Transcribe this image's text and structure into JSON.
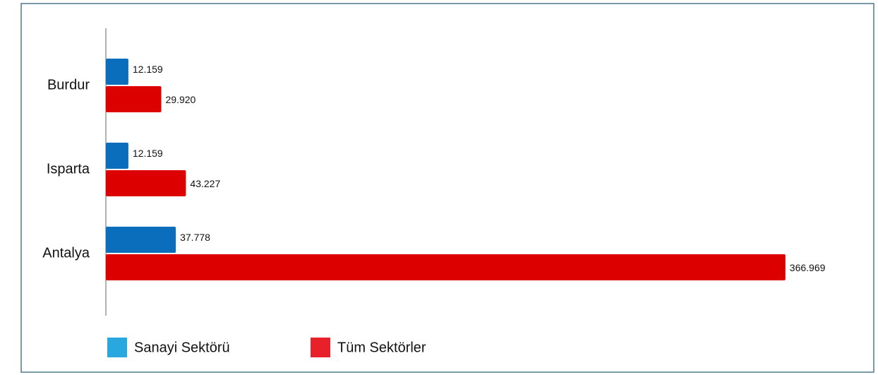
{
  "chart_data": {
    "type": "bar",
    "orientation": "horizontal",
    "categories": [
      "Burdur",
      "Isparta",
      "Antalya"
    ],
    "series": [
      {
        "name": "Sanayi Sektörü",
        "color": "#0a6ebd",
        "legend_color": "#29a8e0",
        "values": [
          12159,
          12159,
          37778
        ],
        "value_labels": [
          "12.159",
          "12.159",
          "37.778"
        ]
      },
      {
        "name": "Tüm Sektörler",
        "color": "#dd0000",
        "legend_color": "#e8202a",
        "values": [
          29920,
          43227,
          366969
        ],
        "value_labels": [
          "29.920",
          "43.227",
          "366.969"
        ]
      }
    ],
    "xlim": [
      0,
      380000
    ],
    "grid": false,
    "legend": "bottom"
  }
}
